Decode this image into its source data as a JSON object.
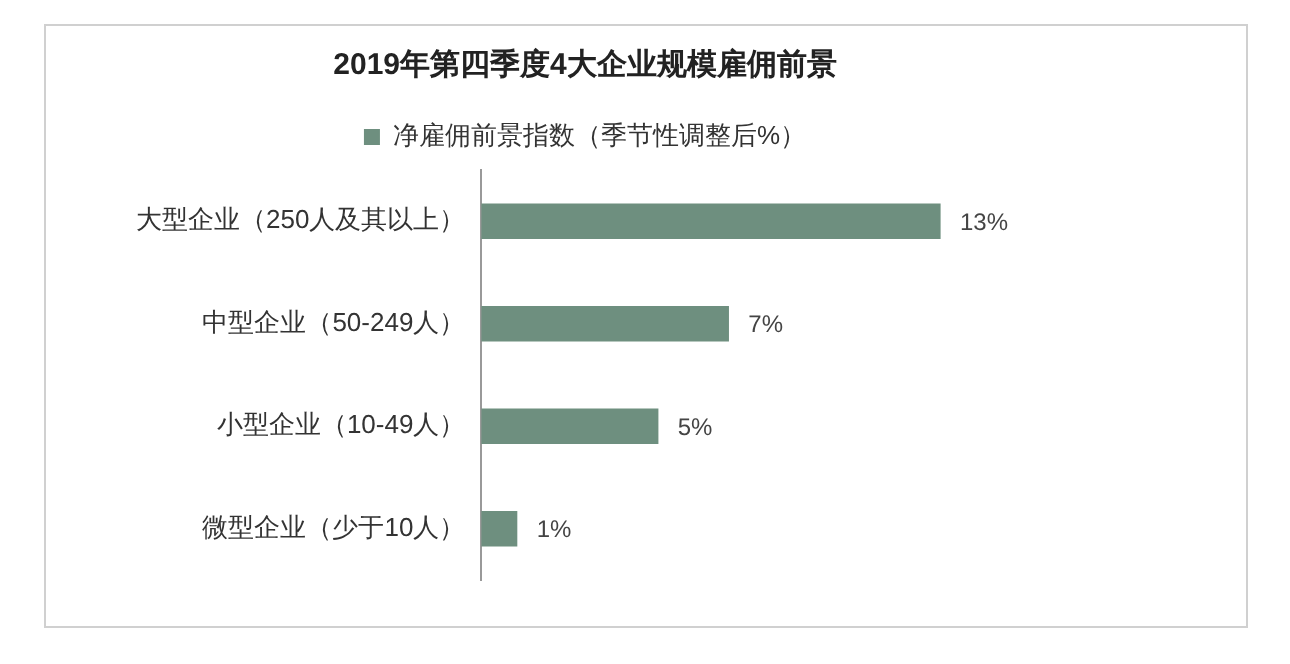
{
  "chart_data": {
    "type": "bar",
    "orientation": "horizontal",
    "title": "2019年第四季度4大企业规模雇佣前景",
    "categories": [
      "大型企业（250人及其以上）",
      "中型企业（50-249人）",
      "小型企业（10-49人）",
      "微型企业（少于10人）"
    ],
    "series": [
      {
        "name": "净雇佣前景指数（季节性调整后%）",
        "color": "#6e8f7f",
        "values": [
          13,
          7,
          5,
          1
        ],
        "value_labels": [
          "13%",
          "7%",
          "5%",
          "1%"
        ]
      }
    ],
    "legend": "top",
    "grid": false
  }
}
